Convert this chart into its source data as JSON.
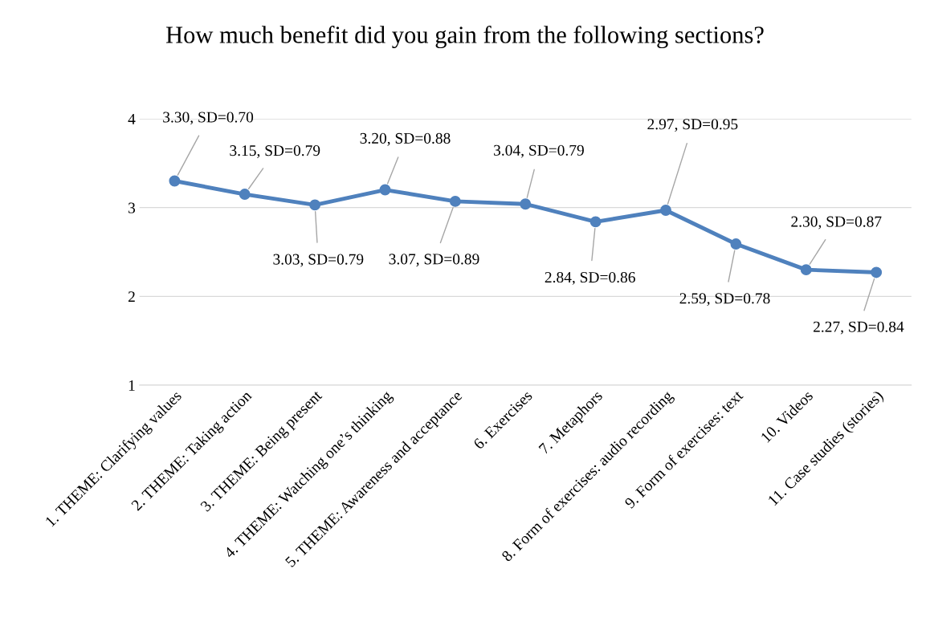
{
  "chart_data": {
    "type": "line",
    "title": "How much benefit did you gain from the following sections?",
    "categories": [
      "1. THEME: Clarifying values",
      "2. THEME: Taking action",
      "3. THEME: Being present",
      "4. THEME: Watching one’s thinking",
      "5. THEME: Awareness and acceptance",
      "6. Exercises",
      "7. Metaphors",
      "8. Form of exercises: audio recording",
      "9. Form of exercises: text",
      "10. Videos",
      "11. Case studies (stories)"
    ],
    "series": [
      {
        "color": "#4f81bd",
        "values": [
          3.3,
          3.15,
          3.03,
          3.2,
          3.07,
          3.04,
          2.84,
          2.97,
          2.59,
          2.3,
          2.27
        ],
        "value_labels": [
          "3.30, SD=0.70",
          "3.15, SD=0.79",
          "3.03, SD=0.79",
          "3.20, SD=0.88",
          "3.07, SD=0.89",
          "3.04, SD=0.79",
          "2.84, SD=0.86",
          "2.97, SD=0.95",
          "2.59, SD=0.78",
          "2.30, SD=0.87",
          "2.27, SD=0.84"
        ]
      }
    ],
    "ylim": [
      1,
      4
    ],
    "yticks": [
      1,
      2,
      3,
      4
    ],
    "grid": "y",
    "marker": "circle",
    "line_style": "solid",
    "legend": false
  }
}
